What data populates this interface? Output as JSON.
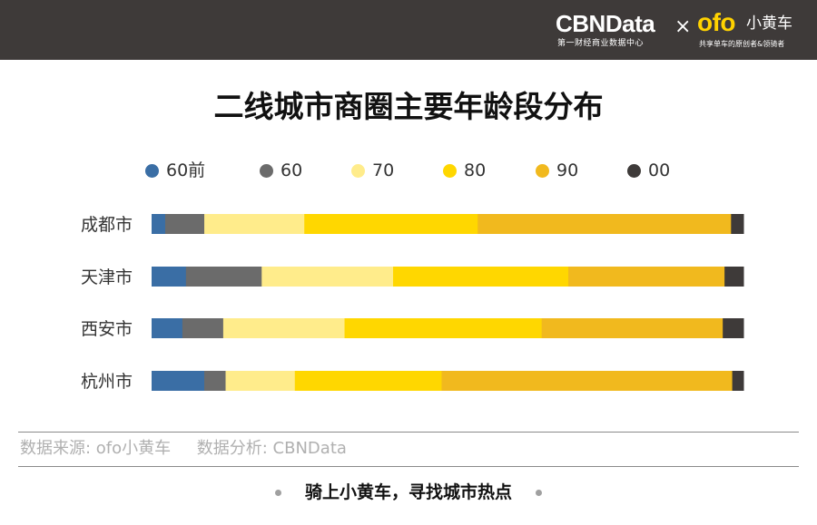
{
  "brand": {
    "cbndata": "CBNData",
    "cbndata_sub": "第一财经商业数据中心",
    "times": "×",
    "ofo": "ofo",
    "ofo_cn": "小黄车",
    "ofo_sub": "共享单车的原创者&领骑者"
  },
  "source_text": "数据来源: ofo小黄车     数据分析: CBNData",
  "footer_text": "骑上小黄车，寻找城市热点",
  "chart_data": {
    "type": "bar",
    "stacked": true,
    "orientation": "horizontal",
    "title": "二线城市商圈主要年龄段分布",
    "categories": [
      "成都市",
      "天津市",
      "西安市",
      "杭州市"
    ],
    "xlim": [
      0,
      100
    ],
    "grid": false,
    "legend_position": "top",
    "series": [
      {
        "name": "60前",
        "color": "#3a6ea5",
        "values": [
          2.3,
          5.8,
          5.2,
          8.9
        ]
      },
      {
        "name": "60",
        "color": "#6b6b6b",
        "values": [
          6.6,
          12.8,
          6.9,
          3.6
        ]
      },
      {
        "name": "70",
        "color": "#ffec8b",
        "values": [
          16.9,
          22.2,
          20.5,
          11.7
        ]
      },
      {
        "name": "80",
        "color": "#ffd700",
        "values": [
          29.3,
          29.6,
          33.3,
          24.8
        ]
      },
      {
        "name": "90",
        "color": "#f1b91e",
        "values": [
          42.8,
          26.4,
          30.6,
          49.1
        ]
      },
      {
        "name": "00",
        "color": "#3e3a39",
        "values": [
          2.1,
          3.2,
          3.5,
          1.9
        ]
      }
    ]
  }
}
